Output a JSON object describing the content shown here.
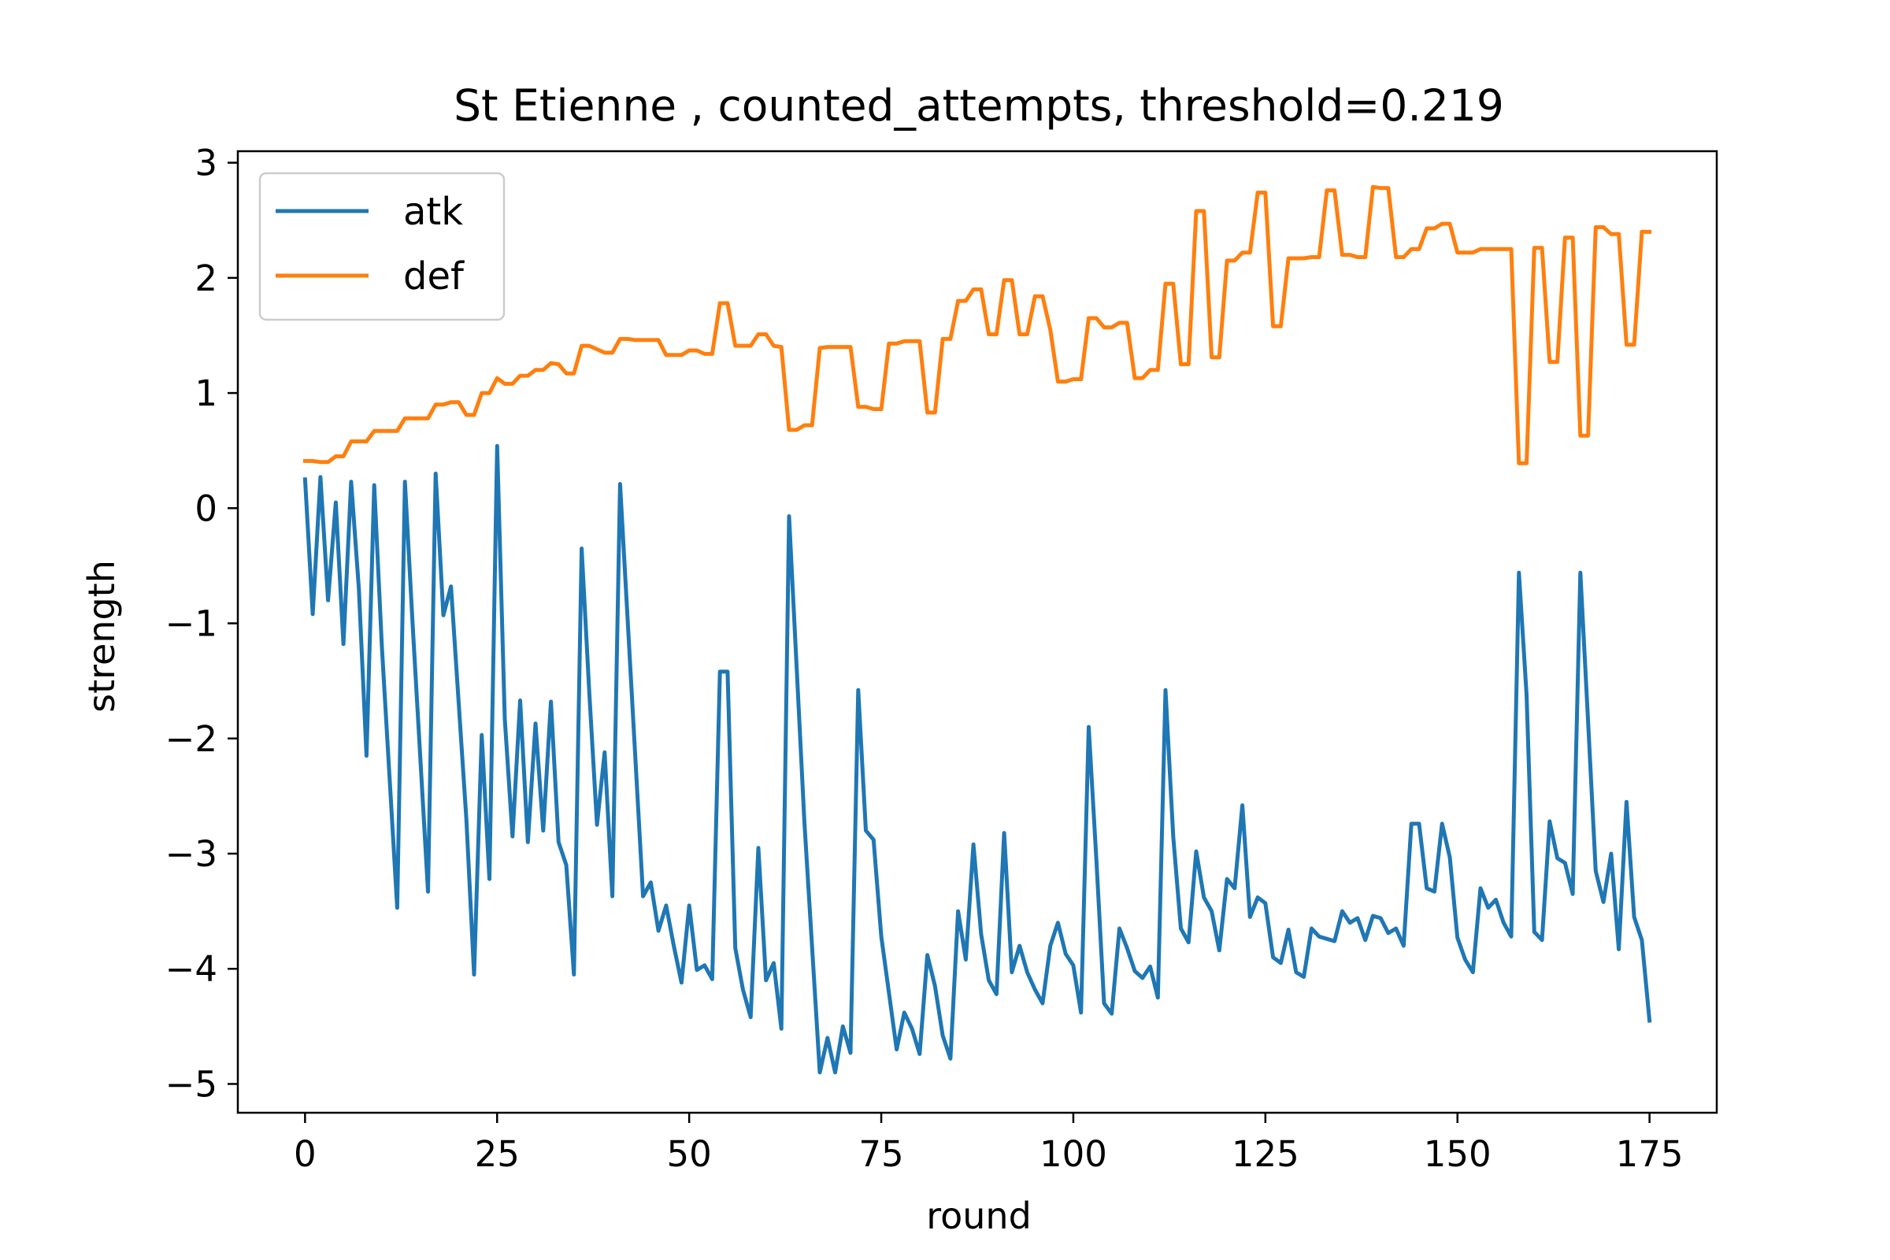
{
  "chart_data": {
    "type": "line",
    "title": "St Etienne , counted_attempts, threshold=0.219",
    "xlabel": "round",
    "ylabel": "strength",
    "xlim": [
      -8.75,
      183.75
    ],
    "ylim": [
      -5.25,
      3.1
    ],
    "xticks": [
      0,
      25,
      50,
      75,
      100,
      125,
      150,
      175
    ],
    "yticks": [
      -5,
      -4,
      -3,
      -2,
      -1,
      0,
      1,
      2,
      3
    ],
    "ytick_labels": [
      "−5",
      "−4",
      "−3",
      "−2",
      "−1",
      "0",
      "1",
      "2",
      "3"
    ],
    "grid": false,
    "legend_position": "upper-left",
    "series": [
      {
        "name": "atk",
        "color": "#1f77b4",
        "x": [
          0,
          1,
          2,
          3,
          4,
          5,
          6,
          7,
          8,
          9,
          10,
          12,
          13,
          14,
          16,
          17,
          18,
          19,
          21,
          22,
          23,
          24,
          25,
          26,
          27,
          28,
          29,
          30,
          31,
          32,
          33,
          34,
          35,
          36,
          37,
          38,
          39,
          40,
          41,
          42,
          44,
          45,
          46,
          47,
          48,
          49,
          50,
          51,
          52,
          53,
          54,
          55,
          56,
          57,
          58,
          59,
          60,
          61,
          62,
          63,
          65,
          67,
          68,
          69,
          70,
          71,
          72,
          73,
          74,
          75,
          77,
          78,
          79,
          80,
          81,
          82,
          83,
          84,
          85,
          86,
          87,
          88,
          89,
          90,
          91,
          92,
          93,
          94,
          95,
          96,
          97,
          98,
          99,
          100,
          101,
          102,
          103,
          104,
          105,
          106,
          107,
          108,
          109,
          110,
          111,
          112,
          113,
          114,
          115,
          116,
          117,
          118,
          119,
          120,
          121,
          122,
          123,
          124,
          125,
          126,
          127,
          128,
          129,
          130,
          131,
          132,
          133,
          134,
          135,
          136,
          137,
          138,
          139,
          140,
          141,
          142,
          143,
          144,
          145,
          146,
          147,
          148,
          149,
          150,
          151,
          152,
          153,
          154,
          155,
          156,
          157,
          158,
          159,
          160,
          161,
          162,
          163,
          164,
          165,
          166,
          167,
          168,
          169,
          170,
          171,
          172,
          173,
          174,
          175
        ],
        "y": [
          0.25,
          -0.92,
          0.27,
          -0.8,
          0.05,
          -1.18,
          0.23,
          -0.7,
          -2.15,
          0.2,
          -1.2,
          -3.47,
          0.23,
          -1.0,
          -3.33,
          0.3,
          -0.93,
          -0.68,
          -2.7,
          -4.05,
          -1.97,
          -3.22,
          0.54,
          -1.83,
          -2.85,
          -1.67,
          -2.9,
          -1.87,
          -2.8,
          -1.68,
          -2.9,
          -3.1,
          -4.05,
          -0.35,
          -1.6,
          -2.75,
          -2.12,
          -3.37,
          0.21,
          -0.98,
          -3.37,
          -3.25,
          -3.67,
          -3.45,
          -3.8,
          -4.12,
          -3.45,
          -4.01,
          -3.97,
          -4.09,
          -1.42,
          -1.42,
          -3.82,
          -4.18,
          -4.42,
          -2.95,
          -4.1,
          -3.95,
          -4.52,
          -0.07,
          -2.73,
          -4.9,
          -4.6,
          -4.9,
          -4.5,
          -4.73,
          -1.58,
          -2.8,
          -2.88,
          -3.72,
          -4.7,
          -4.38,
          -4.52,
          -4.74,
          -3.88,
          -4.15,
          -4.58,
          -4.78,
          -3.5,
          -3.92,
          -2.92,
          -3.7,
          -4.1,
          -4.22,
          -2.82,
          -4.03,
          -3.8,
          -4.03,
          -4.18,
          -4.3,
          -3.8,
          -3.6,
          -3.87,
          -3.97,
          -4.38,
          -1.9,
          -3.05,
          -4.3,
          -4.39,
          -3.65,
          -3.82,
          -4.02,
          -4.08,
          -3.98,
          -4.25,
          -1.58,
          -2.85,
          -3.65,
          -3.77,
          -2.98,
          -3.38,
          -3.5,
          -3.84,
          -3.22,
          -3.3,
          -2.58,
          -3.55,
          -3.38,
          -3.43,
          -3.9,
          -3.95,
          -3.66,
          -4.03,
          -4.07,
          -3.65,
          -3.72,
          -3.74,
          -3.76,
          -3.5,
          -3.6,
          -3.56,
          -3.75,
          -3.54,
          -3.56,
          -3.69,
          -3.65,
          -3.8,
          -2.74,
          -2.74,
          -3.3,
          -3.33,
          -2.74,
          -3.03,
          -3.73,
          -3.92,
          -4.03,
          -3.3,
          -3.47,
          -3.4,
          -3.6,
          -3.72,
          -0.56,
          -1.62,
          -3.68,
          -3.75,
          -2.72,
          -3.04,
          -3.08,
          -3.35,
          -0.56,
          -1.85,
          -3.15,
          -3.42,
          -3.0,
          -3.83,
          -2.55,
          -3.55,
          -3.75,
          -4.45
        ]
      },
      {
        "name": "def",
        "color": "#ff7f0e",
        "x": [
          0,
          1,
          2,
          3,
          4,
          5,
          6,
          7,
          8,
          9,
          10,
          11,
          12,
          13,
          14,
          15,
          16,
          17,
          18,
          19,
          20,
          21,
          22,
          23,
          24,
          25,
          26,
          27,
          28,
          29,
          30,
          31,
          32,
          33,
          34,
          35,
          36,
          37,
          38,
          39,
          40,
          41,
          42,
          43,
          44,
          45,
          46,
          47,
          48,
          49,
          50,
          51,
          52,
          53,
          54,
          55,
          56,
          57,
          58,
          59,
          60,
          61,
          62,
          63,
          64,
          65,
          66,
          67,
          68,
          69,
          70,
          71,
          72,
          73,
          74,
          75,
          76,
          77,
          78,
          79,
          80,
          81,
          82,
          83,
          84,
          85,
          86,
          87,
          88,
          89,
          90,
          91,
          92,
          93,
          94,
          95,
          96,
          97,
          98,
          99,
          100,
          101,
          102,
          103,
          104,
          105,
          106,
          107,
          108,
          109,
          110,
          111,
          112,
          113,
          114,
          115,
          116,
          117,
          118,
          119,
          120,
          121,
          122,
          123,
          124,
          125,
          126,
          127,
          128,
          129,
          130,
          131,
          132,
          133,
          134,
          135,
          136,
          137,
          138,
          139,
          140,
          141,
          142,
          143,
          144,
          145,
          146,
          147,
          148,
          149,
          150,
          151,
          152,
          153,
          154,
          155,
          156,
          157,
          158,
          159,
          160,
          161,
          162,
          163,
          164,
          165,
          166,
          167,
          168,
          169,
          170,
          171,
          172,
          173,
          174,
          175
        ],
        "y": [
          0.41,
          0.41,
          0.4,
          0.4,
          0.45,
          0.45,
          0.58,
          0.58,
          0.58,
          0.67,
          0.67,
          0.67,
          0.67,
          0.78,
          0.78,
          0.78,
          0.78,
          0.9,
          0.9,
          0.92,
          0.92,
          0.81,
          0.81,
          1.0,
          1.0,
          1.13,
          1.08,
          1.08,
          1.15,
          1.15,
          1.2,
          1.2,
          1.26,
          1.25,
          1.17,
          1.17,
          1.41,
          1.41,
          1.38,
          1.35,
          1.35,
          1.47,
          1.47,
          1.46,
          1.46,
          1.46,
          1.46,
          1.33,
          1.33,
          1.33,
          1.37,
          1.37,
          1.34,
          1.34,
          1.78,
          1.78,
          1.41,
          1.41,
          1.41,
          1.51,
          1.51,
          1.41,
          1.4,
          0.68,
          0.68,
          0.72,
          0.72,
          1.39,
          1.4,
          1.4,
          1.4,
          1.4,
          0.88,
          0.88,
          0.86,
          0.86,
          1.43,
          1.43,
          1.45,
          1.45,
          1.45,
          0.83,
          0.83,
          1.47,
          1.47,
          1.8,
          1.8,
          1.9,
          1.9,
          1.51,
          1.51,
          1.98,
          1.98,
          1.51,
          1.51,
          1.84,
          1.84,
          1.55,
          1.1,
          1.1,
          1.12,
          1.12,
          1.65,
          1.65,
          1.57,
          1.57,
          1.61,
          1.61,
          1.13,
          1.13,
          1.2,
          1.2,
          1.95,
          1.95,
          1.25,
          1.25,
          2.58,
          2.58,
          1.31,
          1.31,
          2.15,
          2.15,
          2.22,
          2.22,
          2.74,
          2.74,
          1.58,
          1.58,
          2.17,
          2.17,
          2.17,
          2.18,
          2.18,
          2.76,
          2.76,
          2.2,
          2.2,
          2.18,
          2.18,
          2.79,
          2.78,
          2.78,
          2.18,
          2.18,
          2.25,
          2.25,
          2.43,
          2.43,
          2.47,
          2.47,
          2.22,
          2.22,
          2.22,
          2.25,
          2.25,
          2.25,
          2.25,
          2.25,
          0.39,
          0.39,
          2.26,
          2.26,
          1.27,
          1.27,
          2.35,
          2.35,
          0.63,
          0.63,
          2.44,
          2.44,
          2.38,
          2.38,
          1.42,
          1.42,
          2.4,
          2.4
        ]
      }
    ]
  }
}
